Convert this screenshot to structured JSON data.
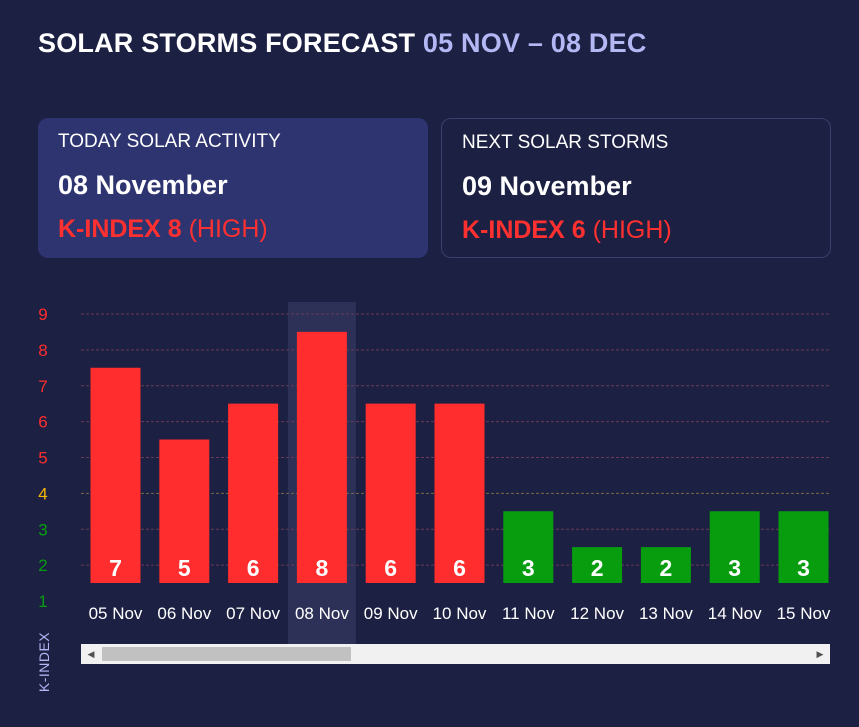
{
  "header": {
    "title": "SOLAR STORMS FORECAST",
    "range": "05 NOV – 08 DEC"
  },
  "today": {
    "heading": "TODAY SOLAR ACTIVITY",
    "date": "08 November",
    "kindex_label": "K-INDEX 8",
    "level": "(HIGH)"
  },
  "next": {
    "heading": "NEXT SOLAR STORMS",
    "date": "09 November",
    "kindex_label": "K-INDEX 6",
    "level": "(HIGH)"
  },
  "chart_data": {
    "type": "bar",
    "ylabel": "K-INDEX",
    "ylim": [
      1,
      9
    ],
    "yticks": [
      "1",
      "2",
      "3",
      "4",
      "5",
      "6",
      "7",
      "8",
      "9"
    ],
    "categories": [
      "05 Nov",
      "06 Nov",
      "07 Nov",
      "08 Nov",
      "09 Nov",
      "10 Nov",
      "11 Nov",
      "12 Nov",
      "13 Nov",
      "14 Nov",
      "15 Nov"
    ],
    "values": [
      7,
      5,
      6,
      8,
      6,
      6,
      3,
      2,
      2,
      3,
      3
    ],
    "highlighted": "08 Nov",
    "grid": true,
    "colors": {
      "high": "#ff2d2d",
      "low": "#079d0f",
      "medium_tick": "#f5b800",
      "gridline": "#6b3a55",
      "highlight_band": "#2d3157"
    }
  },
  "scrollbar": {
    "left_arrow": "◀",
    "right_arrow": "▶"
  }
}
